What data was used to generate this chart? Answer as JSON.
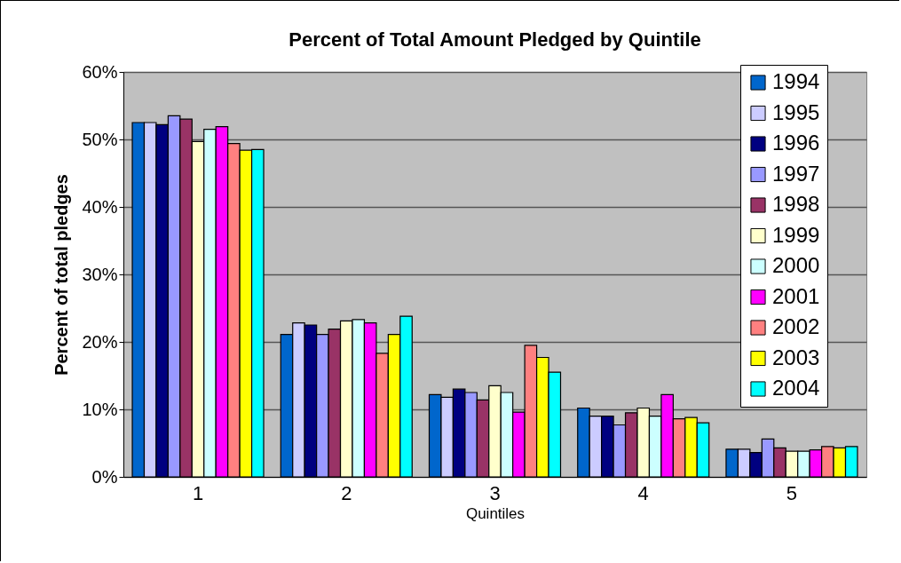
{
  "chart_data": {
    "type": "bar",
    "title": "Percent of Total Amount Pledged by Quintile",
    "xlabel": "Quintiles",
    "ylabel": "Percent of total pledges",
    "categories": [
      "1",
      "2",
      "3",
      "4",
      "5"
    ],
    "series": [
      {
        "name": "1994",
        "color": "#0066cc",
        "values": [
          52.5,
          21.1,
          12.2,
          10.2,
          4.1
        ]
      },
      {
        "name": "1995",
        "color": "#ccccff",
        "values": [
          52.5,
          22.8,
          11.8,
          9.0,
          4.1
        ]
      },
      {
        "name": "1996",
        "color": "#000080",
        "values": [
          52.2,
          22.5,
          13.0,
          9.0,
          3.6
        ]
      },
      {
        "name": "1997",
        "color": "#9999ff",
        "values": [
          53.5,
          21.1,
          12.5,
          7.7,
          5.6
        ]
      },
      {
        "name": "1998",
        "color": "#993366",
        "values": [
          53.0,
          21.9,
          11.4,
          9.5,
          4.3
        ]
      },
      {
        "name": "1999",
        "color": "#ffffcc",
        "values": [
          49.7,
          23.1,
          13.5,
          10.2,
          3.8
        ]
      },
      {
        "name": "2000",
        "color": "#ccffff",
        "values": [
          51.5,
          23.3,
          12.5,
          9.0,
          3.8
        ]
      },
      {
        "name": "2001",
        "color": "#ff00ff",
        "values": [
          51.9,
          22.8,
          9.6,
          12.2,
          4.0
        ]
      },
      {
        "name": "2002",
        "color": "#ff8080",
        "values": [
          49.4,
          18.3,
          19.5,
          8.6,
          4.5
        ]
      },
      {
        "name": "2003",
        "color": "#ffff00",
        "values": [
          48.4,
          21.1,
          17.7,
          8.8,
          4.3
        ]
      },
      {
        "name": "2004",
        "color": "#00ffff",
        "values": [
          48.5,
          23.8,
          15.5,
          8.0,
          4.5
        ]
      }
    ],
    "ylim": [
      0,
      60
    ],
    "yticks": [
      {
        "value": 0,
        "label": "0%"
      },
      {
        "value": 10,
        "label": "10%"
      },
      {
        "value": 20,
        "label": "20%"
      },
      {
        "value": 30,
        "label": "30%"
      },
      {
        "value": 40,
        "label": "40%"
      },
      {
        "value": 50,
        "label": "50%"
      },
      {
        "value": 60,
        "label": "60%"
      }
    ],
    "grid": "y",
    "legend": "top right"
  }
}
